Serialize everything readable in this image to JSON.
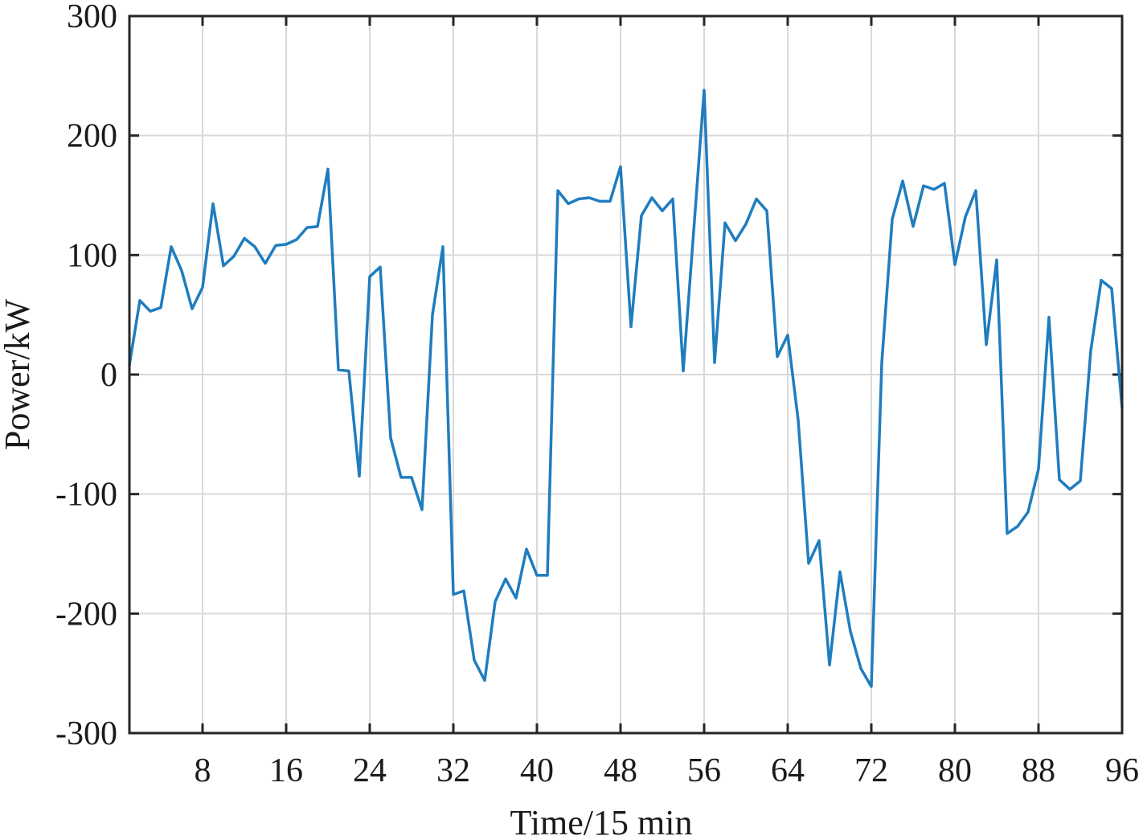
{
  "chart_data": {
    "type": "line",
    "xlabel": "Time/15 min",
    "ylabel": "Power/kW",
    "xlim": [
      1,
      96
    ],
    "ylim": [
      -300,
      300
    ],
    "xticks": [
      8,
      16,
      24,
      32,
      40,
      48,
      56,
      64,
      72,
      80,
      88,
      96
    ],
    "yticks": [
      -300,
      -200,
      -100,
      0,
      100,
      200,
      300
    ],
    "grid": true,
    "color": "#1f7dbf",
    "series": [
      {
        "x": [
          1,
          2,
          3,
          4,
          5,
          6,
          7,
          8,
          9,
          10,
          11,
          12,
          13,
          14,
          15,
          16,
          17,
          18,
          19,
          20,
          21,
          22,
          23,
          24,
          25,
          26,
          27,
          28,
          29,
          30,
          31,
          32,
          33,
          34,
          35,
          36,
          37,
          38,
          39,
          40,
          41,
          42,
          43,
          44,
          45,
          46,
          47,
          48,
          49,
          50,
          51,
          52,
          53,
          54,
          55,
          56,
          57,
          58,
          59,
          60,
          61,
          62,
          63,
          64,
          65,
          66,
          67,
          68,
          69,
          70,
          71,
          72,
          73,
          74,
          75,
          76,
          77,
          78,
          79,
          80,
          81,
          82,
          83,
          84,
          85,
          86,
          87,
          88,
          89,
          90,
          91,
          92,
          93,
          94,
          95,
          96
        ],
        "values": [
          8,
          62,
          53,
          56,
          107,
          87,
          55,
          73,
          143,
          91,
          99,
          114,
          107,
          93,
          108,
          109,
          113,
          123,
          124,
          172,
          4,
          3,
          -85,
          82,
          90,
          -53,
          -86,
          -86,
          -113,
          50,
          107,
          -184,
          -181,
          -239,
          -256,
          -190,
          -171,
          -187,
          -146,
          -168,
          -168,
          154,
          143,
          147,
          148,
          145,
          145,
          174,
          40,
          133,
          148,
          137,
          147,
          3,
          120,
          238,
          10,
          127,
          112,
          126,
          147,
          137,
          15,
          33,
          -38,
          -158,
          -139,
          -243,
          -165,
          -215,
          -246,
          -261,
          10,
          130,
          162,
          124,
          158,
          155,
          160,
          92,
          132,
          154,
          25,
          96,
          -133,
          -127,
          -115,
          -79,
          48,
          -88,
          -96,
          -89,
          20,
          79,
          72,
          -28
        ]
      }
    ]
  }
}
